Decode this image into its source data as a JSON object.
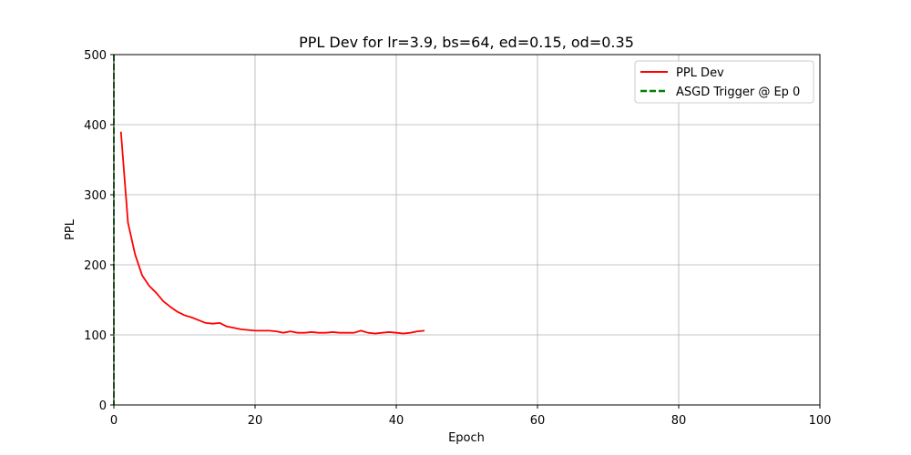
{
  "chart_data": {
    "type": "line",
    "title": "PPL Dev for lr=3.9, bs=64, ed=0.15, od=0.35",
    "xlabel": "Epoch",
    "ylabel": "PPL",
    "xlim": [
      0,
      100
    ],
    "ylim": [
      0,
      500
    ],
    "xticks": [
      0,
      20,
      40,
      60,
      80,
      100
    ],
    "yticks": [
      0,
      100,
      200,
      300,
      400,
      500
    ],
    "grid": true,
    "legend_position": "top-right",
    "series": [
      {
        "name": "PPL Dev",
        "color": "#ff0000",
        "style": "solid",
        "x": [
          1,
          2,
          3,
          4,
          5,
          6,
          7,
          8,
          9,
          10,
          11,
          12,
          13,
          14,
          15,
          16,
          17,
          18,
          19,
          20,
          21,
          22,
          23,
          24,
          25,
          26,
          27,
          28,
          29,
          30,
          31,
          32,
          33,
          34,
          35,
          36,
          37,
          38,
          39,
          40,
          41,
          42,
          43,
          44
        ],
        "y": [
          390,
          260,
          215,
          185,
          170,
          160,
          148,
          140,
          133,
          128,
          125,
          121,
          117,
          116,
          117,
          112,
          110,
          108,
          107,
          106,
          106,
          106,
          105,
          103,
          105,
          103,
          103,
          104,
          103,
          103,
          104,
          103,
          103,
          103,
          106,
          103,
          102,
          103,
          104,
          103,
          102,
          103,
          105,
          106
        ]
      },
      {
        "name": "ASGD Trigger @ Ep 0",
        "color": "#008000",
        "style": "dashed",
        "type": "vline",
        "x_value": 0
      }
    ]
  }
}
